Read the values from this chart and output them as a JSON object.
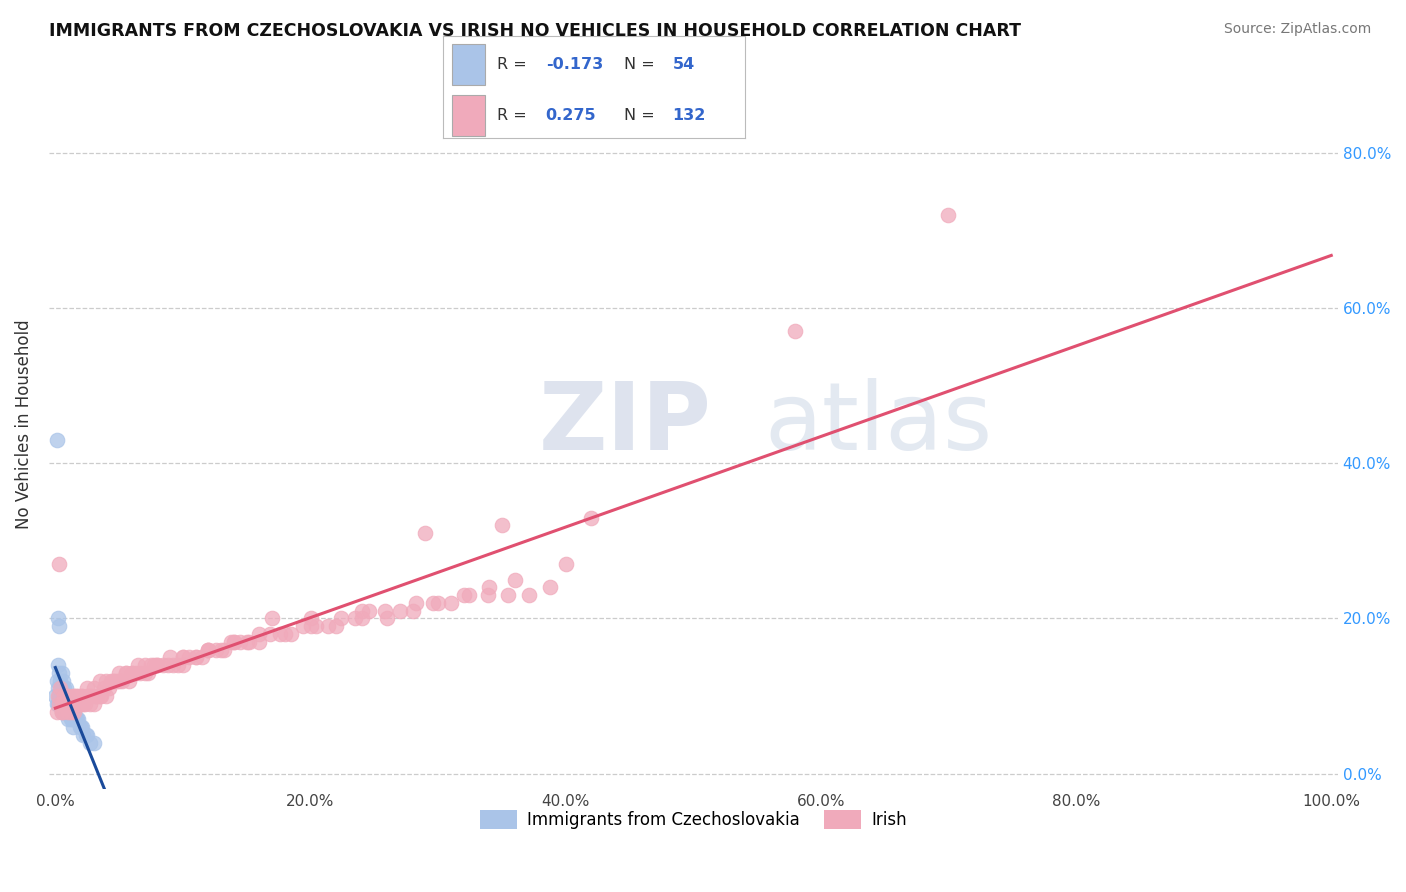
{
  "title": "IMMIGRANTS FROM CZECHOSLOVAKIA VS IRISH NO VEHICLES IN HOUSEHOLD CORRELATION CHART",
  "source": "Source: ZipAtlas.com",
  "ylabel": "No Vehicles in Household",
  "series": [
    {
      "name": "Immigrants from Czechoslovakia",
      "R": -0.173,
      "N": 54,
      "color": "#aac4e8",
      "line_color": "#1a4a9a",
      "x": [
        0.001,
        0.001,
        0.002,
        0.002,
        0.002,
        0.003,
        0.003,
        0.003,
        0.004,
        0.004,
        0.004,
        0.005,
        0.005,
        0.005,
        0.005,
        0.006,
        0.006,
        0.006,
        0.007,
        0.007,
        0.007,
        0.008,
        0.008,
        0.008,
        0.009,
        0.009,
        0.01,
        0.01,
        0.01,
        0.011,
        0.011,
        0.012,
        0.012,
        0.013,
        0.013,
        0.014,
        0.014,
        0.015,
        0.015,
        0.016,
        0.017,
        0.018,
        0.019,
        0.02,
        0.021,
        0.022,
        0.024,
        0.025,
        0.027,
        0.03,
        0.001,
        0.002,
        0.003,
        0.0
      ],
      "y": [
        0.12,
        0.09,
        0.14,
        0.11,
        0.09,
        0.13,
        0.1,
        0.09,
        0.12,
        0.1,
        0.09,
        0.13,
        0.11,
        0.09,
        0.08,
        0.12,
        0.1,
        0.08,
        0.11,
        0.09,
        0.08,
        0.11,
        0.1,
        0.08,
        0.1,
        0.08,
        0.1,
        0.09,
        0.07,
        0.09,
        0.08,
        0.09,
        0.07,
        0.08,
        0.07,
        0.08,
        0.06,
        0.08,
        0.07,
        0.07,
        0.07,
        0.07,
        0.06,
        0.06,
        0.06,
        0.05,
        0.05,
        0.05,
        0.04,
        0.04,
        0.43,
        0.2,
        0.19,
        0.1
      ]
    },
    {
      "name": "Irish",
      "R": 0.275,
      "N": 132,
      "color": "#f0aabb",
      "line_color": "#e05070",
      "x": [
        0.001,
        0.002,
        0.003,
        0.004,
        0.005,
        0.005,
        0.006,
        0.007,
        0.008,
        0.009,
        0.01,
        0.01,
        0.011,
        0.012,
        0.013,
        0.014,
        0.015,
        0.016,
        0.017,
        0.018,
        0.019,
        0.02,
        0.021,
        0.022,
        0.023,
        0.025,
        0.026,
        0.027,
        0.028,
        0.03,
        0.032,
        0.033,
        0.035,
        0.036,
        0.038,
        0.04,
        0.042,
        0.044,
        0.046,
        0.048,
        0.05,
        0.052,
        0.055,
        0.058,
        0.06,
        0.063,
        0.066,
        0.07,
        0.073,
        0.077,
        0.08,
        0.084,
        0.088,
        0.092,
        0.096,
        0.1,
        0.105,
        0.11,
        0.115,
        0.12,
        0.126,
        0.132,
        0.138,
        0.145,
        0.152,
        0.16,
        0.168,
        0.176,
        0.185,
        0.194,
        0.204,
        0.214,
        0.224,
        0.235,
        0.246,
        0.258,
        0.27,
        0.283,
        0.296,
        0.31,
        0.324,
        0.339,
        0.355,
        0.371,
        0.388,
        0.005,
        0.01,
        0.015,
        0.02,
        0.025,
        0.03,
        0.035,
        0.04,
        0.045,
        0.05,
        0.055,
        0.06,
        0.065,
        0.07,
        0.075,
        0.08,
        0.09,
        0.1,
        0.11,
        0.12,
        0.13,
        0.14,
        0.15,
        0.16,
        0.18,
        0.2,
        0.22,
        0.24,
        0.26,
        0.28,
        0.3,
        0.32,
        0.34,
        0.36,
        0.4,
        0.003,
        0.7,
        0.58,
        0.42,
        0.35,
        0.29,
        0.24,
        0.2,
        0.17,
        0.14,
        0.12,
        0.1
      ],
      "y": [
        0.08,
        0.1,
        0.09,
        0.11,
        0.09,
        0.08,
        0.09,
        0.1,
        0.09,
        0.1,
        0.09,
        0.08,
        0.09,
        0.08,
        0.09,
        0.1,
        0.08,
        0.1,
        0.09,
        0.1,
        0.09,
        0.09,
        0.1,
        0.09,
        0.09,
        0.1,
        0.1,
        0.09,
        0.1,
        0.09,
        0.1,
        0.1,
        0.1,
        0.1,
        0.11,
        0.1,
        0.11,
        0.12,
        0.12,
        0.12,
        0.12,
        0.12,
        0.13,
        0.12,
        0.13,
        0.13,
        0.13,
        0.13,
        0.13,
        0.14,
        0.14,
        0.14,
        0.14,
        0.14,
        0.14,
        0.15,
        0.15,
        0.15,
        0.15,
        0.16,
        0.16,
        0.16,
        0.17,
        0.17,
        0.17,
        0.17,
        0.18,
        0.18,
        0.18,
        0.19,
        0.19,
        0.19,
        0.2,
        0.2,
        0.21,
        0.21,
        0.21,
        0.22,
        0.22,
        0.22,
        0.23,
        0.23,
        0.23,
        0.23,
        0.24,
        0.08,
        0.1,
        0.1,
        0.1,
        0.11,
        0.11,
        0.12,
        0.12,
        0.12,
        0.13,
        0.13,
        0.13,
        0.14,
        0.14,
        0.14,
        0.14,
        0.15,
        0.15,
        0.15,
        0.16,
        0.16,
        0.17,
        0.17,
        0.18,
        0.18,
        0.19,
        0.19,
        0.2,
        0.2,
        0.21,
        0.22,
        0.23,
        0.24,
        0.25,
        0.27,
        0.27,
        0.72,
        0.57,
        0.33,
        0.32,
        0.31,
        0.21,
        0.2,
        0.2,
        0.17,
        0.16,
        0.14
      ]
    }
  ],
  "xlim": [
    -0.005,
    1.005
  ],
  "ylim": [
    -0.02,
    0.92
  ],
  "yticks": [
    0.0,
    0.2,
    0.4,
    0.6,
    0.8
  ],
  "ytick_labels": [
    "0.0%",
    "20.0%",
    "40.0%",
    "60.0%",
    "80.0%"
  ],
  "xticks": [
    0.0,
    0.2,
    0.4,
    0.6,
    0.8,
    1.0
  ],
  "xtick_labels": [
    "0.0%",
    "20.0%",
    "40.0%",
    "60.0%",
    "80.0%",
    "100.0%"
  ],
  "watermark_zip": "ZIP",
  "watermark_atlas": "atlas",
  "background_color": "#ffffff",
  "grid_color": "#cccccc",
  "legend_R_color": "#3366cc",
  "legend_N_color": "#3366cc"
}
